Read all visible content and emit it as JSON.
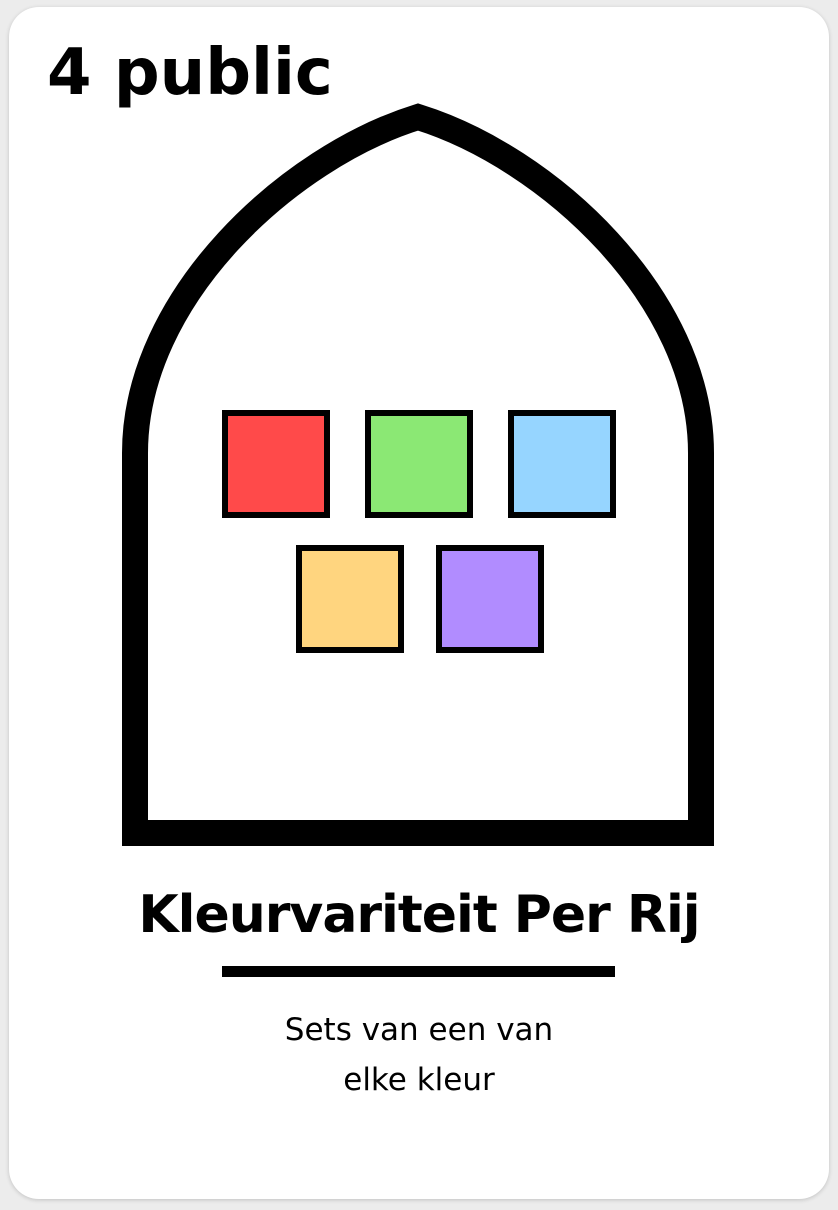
{
  "card": {
    "score_label": "4 public",
    "title": "Kleurvariteit Per Rij",
    "description_lines": [
      "Sets van een van",
      "elke kleur"
    ],
    "colors": {
      "background": "#ffffff",
      "outline": "#000000"
    },
    "tiles": [
      {
        "name": "red",
        "color": "#ff4a4a"
      },
      {
        "name": "green",
        "color": "#8be874"
      },
      {
        "name": "blue",
        "color": "#96d5ff"
      },
      {
        "name": "yellow",
        "color": "#ffd57f"
      },
      {
        "name": "purple",
        "color": "#b18cff"
      }
    ]
  }
}
